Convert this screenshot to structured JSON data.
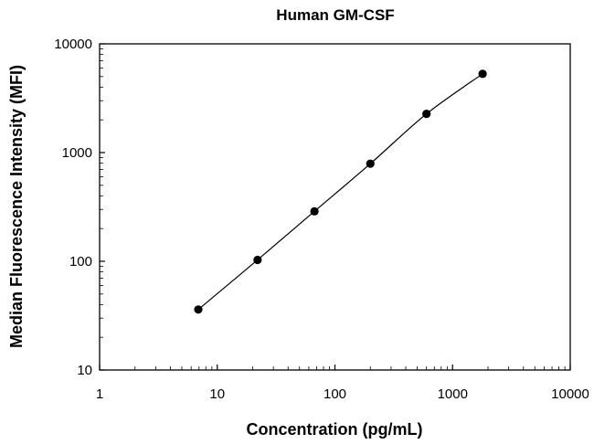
{
  "chart_data": {
    "type": "scatter",
    "title": "Human GM-CSF",
    "xlabel": "Concentration (pg/mL)",
    "ylabel": "Median Fluorescence Intensity (MFI)",
    "xscale": "log",
    "yscale": "log",
    "xlim": [
      1,
      10000
    ],
    "ylim": [
      10,
      10000
    ],
    "xticks": [
      1,
      10,
      100,
      1000,
      10000
    ],
    "yticks": [
      10,
      100,
      1000,
      10000
    ],
    "xtick_labels": [
      "1",
      "10",
      "100",
      "1000",
      "10000"
    ],
    "ytick_labels": [
      "10",
      "100",
      "1000",
      "10000"
    ],
    "grid": false,
    "legend": "none",
    "series": [
      {
        "x": [
          6.9,
          22,
          67,
          200,
          600,
          1800
        ],
        "y": [
          36,
          103,
          288,
          790,
          2270,
          5300
        ],
        "fit_line": true
      }
    ],
    "colors": {
      "points": "#000000",
      "line": "#000000",
      "axes": "#000000"
    }
  }
}
